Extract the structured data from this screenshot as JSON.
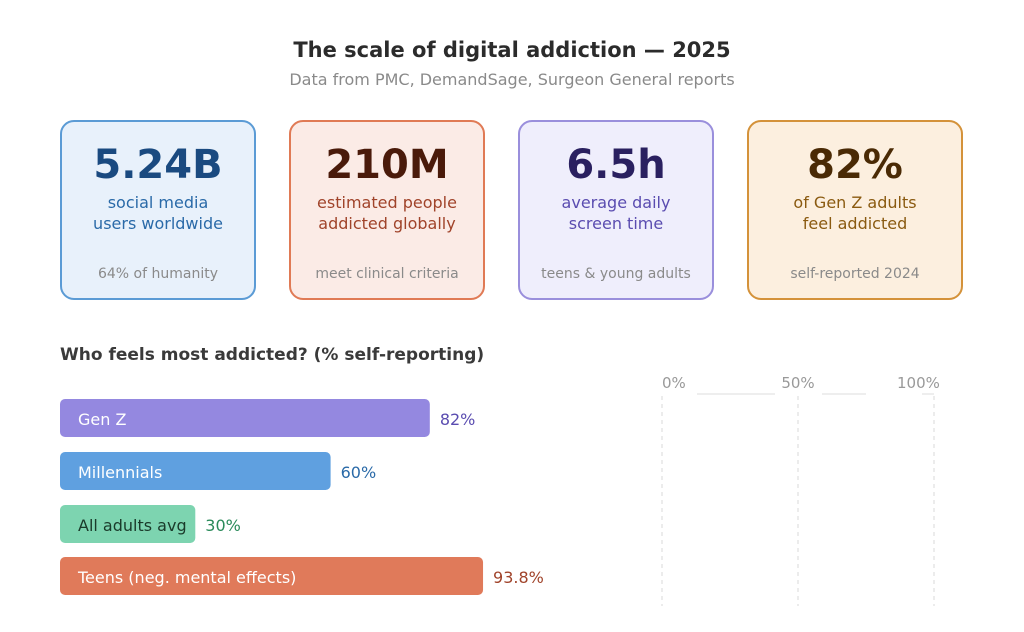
{
  "header": {
    "title": "The scale of digital addiction — 2025",
    "subtitle": "Data from PMC, DemandSage, Surgeon General reports"
  },
  "cards": [
    {
      "value": "5.24B",
      "label1": "social media",
      "label2": "users worldwide",
      "note": "64% of humanity",
      "bg": "#e8f1fb",
      "border": "#5b9bd5",
      "valueColor": "#1a4a80",
      "labelColor": "#2a6aa8"
    },
    {
      "value": "210M",
      "label1": "estimated people",
      "label2": "addicted globally",
      "note": "meet clinical criteria",
      "bg": "#fbebe6",
      "border": "#e07a55",
      "valueColor": "#4a1a0a",
      "labelColor": "#a0432a"
    },
    {
      "value": "6.5h",
      "label1": "average daily",
      "label2": "screen time",
      "note": "teens & young adults",
      "bg": "#efeefc",
      "border": "#9a8fdc",
      "valueColor": "#2a2060",
      "labelColor": "#5a4cb0"
    },
    {
      "value": "82%",
      "label1": "of Gen Z adults",
      "label2": "feel addicted",
      "note": "self-reported 2024",
      "bg": "#fcefdf",
      "border": "#d4923a",
      "valueColor": "#4a2a05",
      "labelColor": "#8a5a10"
    }
  ],
  "chart_data": {
    "type": "bar",
    "orientation": "horizontal",
    "title": "Who feels most addicted? (% self-reporting)",
    "categories": [
      "Gen Z",
      "Millennials",
      "All adults avg",
      "Teens (neg. mental effects)"
    ],
    "values": [
      82,
      60,
      30,
      93.8
    ],
    "data_labels": [
      "82%",
      "60%",
      "30%",
      "93.8%"
    ],
    "colors": [
      "#9488e0",
      "#5fa0e0",
      "#7dd4b0",
      "#e07a5a"
    ],
    "label_colors": [
      "#5a4cb0",
      "#2a6aa8",
      "#2a8a5a",
      "#a0432a"
    ],
    "xlim": [
      0,
      100
    ],
    "xticks": [
      "0%",
      "50%",
      "100%"
    ],
    "grid": true
  }
}
